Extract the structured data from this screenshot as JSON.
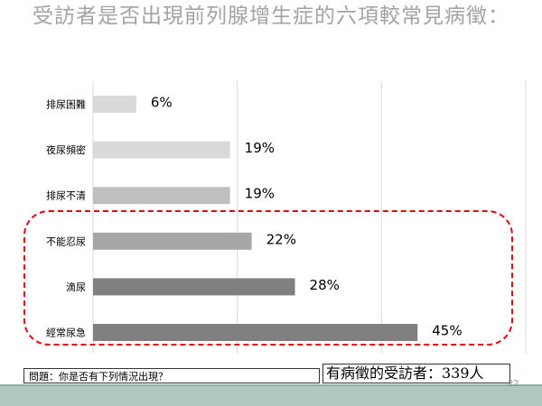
{
  "slide": {
    "title": "受訪者是否出現前列腺增生症的六項較常見病徵：",
    "question": "問題：你是否有下列情況出現？",
    "respondents": "有病徵的受訪者：339人",
    "page_number": "22",
    "highlight_color": "#e60012"
  },
  "chart_data": {
    "type": "bar",
    "orientation": "horizontal",
    "title": "受訪者是否出現前列腺增生症的六項較常見病徵：",
    "categories": [
      "排尿困難",
      "夜尿頻密",
      "排尿不清",
      "不能忍尿",
      "滴尿",
      "經常尿急"
    ],
    "values": [
      6,
      19,
      19,
      22,
      28,
      45
    ],
    "labels": [
      "6%",
      "19%",
      "19%",
      "22%",
      "28%",
      "45%"
    ],
    "bar_colors": [
      "#d9d9d9",
      "#d9d9d9",
      "#bfbfbf",
      "#a6a6a6",
      "#808080",
      "#808080"
    ],
    "xlim": [
      0,
      60
    ],
    "x_gridlines": [
      0,
      20,
      40,
      60
    ],
    "grid": true,
    "legend": false
  }
}
